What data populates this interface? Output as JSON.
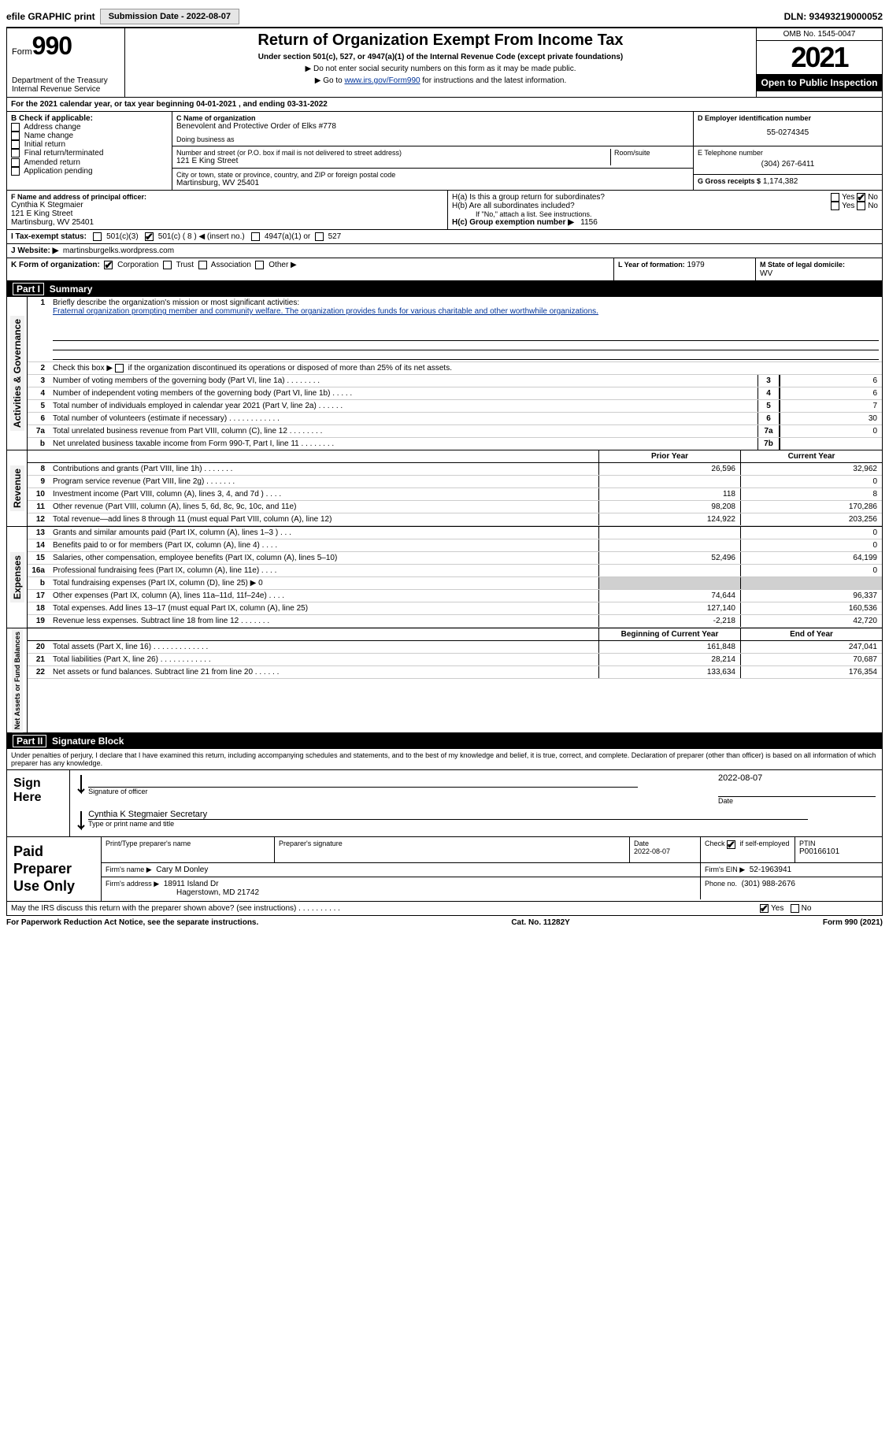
{
  "topbar": {
    "efile_label": "efile GRAPHIC print",
    "submission_label": "Submission Date - 2022-08-07",
    "dln": "DLN: 93493219000052"
  },
  "header": {
    "form_word": "Form",
    "form_num": "990",
    "dept": "Department of the Treasury",
    "irs": "Internal Revenue Service",
    "title": "Return of Organization Exempt From Income Tax",
    "sub": "Under section 501(c), 527, or 4947(a)(1) of the Internal Revenue Code (except private foundations)",
    "note1": "▶ Do not enter social security numbers on this form as it may be made public.",
    "note2_pre": "▶ Go to ",
    "note2_link": "www.irs.gov/Form990",
    "note2_post": " for instructions and the latest information.",
    "omb": "OMB No. 1545-0047",
    "year": "2021",
    "inspect": "Open to Public Inspection"
  },
  "lineA": "For the 2021 calendar year, or tax year beginning 04-01-2021     , and ending 03-31-2022",
  "boxB": {
    "title": "B Check if applicable:",
    "opts": [
      "Address change",
      "Name change",
      "Initial return",
      "Final return/terminated",
      "Amended return",
      "Application pending"
    ]
  },
  "boxC": {
    "label_name": "C Name of organization",
    "name": "Benevolent and Protective Order of Elks #778",
    "dba_label": "Doing business as",
    "dba": "",
    "street_label": "Number and street (or P.O. box if mail is not delivered to street address)",
    "room_label": "Room/suite",
    "street": "121 E King Street",
    "city_label": "City or town, state or province, country, and ZIP or foreign postal code",
    "city": "Martinsburg, WV  25401"
  },
  "boxD": {
    "label": "D Employer identification number",
    "val": "55-0274345"
  },
  "boxE": {
    "label": "E Telephone number",
    "val": "(304) 267-6411"
  },
  "boxG": {
    "label": "G Gross receipts $",
    "val": "1,174,382"
  },
  "boxF": {
    "label": "F  Name and address of principal officer:",
    "name": "Cynthia K Stegmaier",
    "addr1": "121 E King Street",
    "addr2": "Martinsburg, WV  25401"
  },
  "boxH": {
    "ha_label": "H(a)  Is this a group return for subordinates?",
    "hb_label": "H(b)  Are all subordinates included?",
    "hb_note": "If \"No,\" attach a list. See instructions.",
    "hc_label": "H(c)  Group exemption number ▶",
    "hc_val": "1156",
    "yes": "Yes",
    "no": "No"
  },
  "boxI": {
    "label": "I   Tax-exempt status:",
    "o1": "501(c)(3)",
    "o2": "501(c) ( 8 ) ◀ (insert no.)",
    "o3": "4947(a)(1) or",
    "o4": "527"
  },
  "boxJ": {
    "label": "J   Website: ▶",
    "val": "martinsburgelks.wordpress.com"
  },
  "boxK": {
    "label": "K Form of organization:",
    "o1": "Corporation",
    "o2": "Trust",
    "o3": "Association",
    "o4": "Other ▶"
  },
  "boxL": {
    "label": "L Year of formation:",
    "val": "1979"
  },
  "boxM": {
    "label": "M State of legal domicile:",
    "val": "WV"
  },
  "part1": {
    "num": "Part I",
    "title": "Summary",
    "l1_pre": "Briefly describe the organization's mission or most significant activities:",
    "l1_text": "Fraternal organization prompting member and community welfare. The organization provides funds for various charitable and other worthwhile organizations.",
    "l2": "Check this box ▶        if the organization discontinued its operations or disposed of more than 25% of its net assets.",
    "gov_label": "Activities & Governance",
    "rev_label": "Revenue",
    "exp_label": "Expenses",
    "net_label": "Net Assets or Fund Balances",
    "rows_gov": [
      {
        "n": "3",
        "d": "Number of voting members of the governing body (Part VI, line 1a)   .    .    .    .    .    .    .    .",
        "b": "3",
        "v": "6"
      },
      {
        "n": "4",
        "d": "Number of independent voting members of the governing body (Part VI, line 1b)   .    .    .    .    .",
        "b": "4",
        "v": "6"
      },
      {
        "n": "5",
        "d": "Total number of individuals employed in calendar year 2021 (Part V, line 2a)   .    .    .    .    .    .",
        "b": "5",
        "v": "7"
      },
      {
        "n": "6",
        "d": "Total number of volunteers (estimate if necessary)     .    .    .    .    .    .    .    .    .    .    .    .",
        "b": "6",
        "v": "30"
      },
      {
        "n": "7a",
        "d": "Total unrelated business revenue from Part VIII, column (C), line 12   .    .    .    .    .    .    .    .",
        "b": "7a",
        "v": "0"
      },
      {
        "n": "b",
        "d": "Net unrelated business taxable income from Form 990-T, Part I, line 11  .    .    .    .    .    .    .    .",
        "b": "7b",
        "v": ""
      }
    ],
    "py_label": "Prior Year",
    "cy_label": "Current Year",
    "rows_rev": [
      {
        "n": "8",
        "d": "Contributions and grants (Part VIII, line 1h)    .    .    .    .    .    .    .",
        "py": "26,596",
        "cy": "32,962"
      },
      {
        "n": "9",
        "d": "Program service revenue (Part VIII, line 2g)    .    .    .    .    .    .    .",
        "py": "",
        "cy": "0"
      },
      {
        "n": "10",
        "d": "Investment income (Part VIII, column (A), lines 3, 4, and 7d )    .    .    .    .",
        "py": "118",
        "cy": "8"
      },
      {
        "n": "11",
        "d": "Other revenue (Part VIII, column (A), lines 5, 6d, 8c, 9c, 10c, and 11e)",
        "py": "98,208",
        "cy": "170,286"
      },
      {
        "n": "12",
        "d": "Total revenue—add lines 8 through 11 (must equal Part VIII, column (A), line 12)",
        "py": "124,922",
        "cy": "203,256"
      }
    ],
    "rows_exp": [
      {
        "n": "13",
        "d": "Grants and similar amounts paid (Part IX, column (A), lines 1–3 )  .    .    .",
        "py": "",
        "cy": "0"
      },
      {
        "n": "14",
        "d": "Benefits paid to or for members (Part IX, column (A), line 4)  .    .    .    .",
        "py": "",
        "cy": "0"
      },
      {
        "n": "15",
        "d": "Salaries, other compensation, employee benefits (Part IX, column (A), lines 5–10)",
        "py": "52,496",
        "cy": "64,199"
      },
      {
        "n": "16a",
        "d": "Professional fundraising fees (Part IX, column (A), line 11e)  .    .    .    .",
        "py": "",
        "cy": "0"
      },
      {
        "n": "b",
        "d": "Total fundraising expenses (Part IX, column (D), line 25) ▶ 0",
        "py": "shade",
        "cy": "shade"
      },
      {
        "n": "17",
        "d": "Other expenses (Part IX, column (A), lines 11a–11d, 11f–24e)  .    .    .    .",
        "py": "74,644",
        "cy": "96,337"
      },
      {
        "n": "18",
        "d": "Total expenses. Add lines 13–17 (must equal Part IX, column (A), line 25)",
        "py": "127,140",
        "cy": "160,536"
      },
      {
        "n": "19",
        "d": "Revenue less expenses. Subtract line 18 from line 12    .    .    .    .    .    .    .",
        "py": "-2,218",
        "cy": "42,720"
      }
    ],
    "boy_label": "Beginning of Current Year",
    "eoy_label": "End of Year",
    "rows_net": [
      {
        "n": "20",
        "d": "Total assets (Part X, line 16)   .    .    .    .    .    .    .    .    .    .    .    .    .",
        "py": "161,848",
        "cy": "247,041"
      },
      {
        "n": "21",
        "d": "Total liabilities (Part X, line 26)    .    .    .    .    .    .    .    .    .    .    .    .",
        "py": "28,214",
        "cy": "70,687"
      },
      {
        "n": "22",
        "d": "Net assets or fund balances. Subtract line 21 from line 20   .    .    .    .    .    .",
        "py": "133,634",
        "cy": "176,354"
      }
    ]
  },
  "part2": {
    "num": "Part II",
    "title": "Signature Block",
    "decl": "Under penalties of perjury, I declare that I have examined this return, including accompanying schedules and statements, and to the best of my knowledge and belief, it is true, correct, and complete. Declaration of preparer (other than officer) is based on all information of which preparer has any knowledge.",
    "sign_here": "Sign Here",
    "sig_officer": "Signature of officer",
    "sig_date": "2022-08-07",
    "date_label": "Date",
    "officer_name": "Cynthia K Stegmaier  Secretary",
    "name_title_label": "Type or print name and title",
    "paid_label": "Paid Preparer Use Only",
    "prep_name_label": "Print/Type preparer's name",
    "prep_sig_label": "Preparer's signature",
    "prep_date_label": "Date",
    "prep_date": "2022-08-07",
    "check_self": "Check         if self-employed",
    "ptin_label": "PTIN",
    "ptin": "P00166101",
    "firm_name_label": "Firm's name     ▶",
    "firm_name": "Cary M Donley",
    "firm_ein_label": "Firm's EIN ▶",
    "firm_ein": "52-1963941",
    "firm_addr_label": "Firm's address ▶",
    "firm_addr1": "18911 Island Dr",
    "firm_addr2": "Hagerstown, MD  21742",
    "phone_label": "Phone no.",
    "phone": "(301) 988-2676",
    "discuss": "May the IRS discuss this return with the preparer shown above? (see instructions)    .    .    .    .    .    .    .    .    .    .",
    "yes": "Yes",
    "no": "No"
  },
  "footer": {
    "left": "For Paperwork Reduction Act Notice, see the separate instructions.",
    "mid": "Cat. No. 11282Y",
    "right": "Form 990 (2021)"
  }
}
